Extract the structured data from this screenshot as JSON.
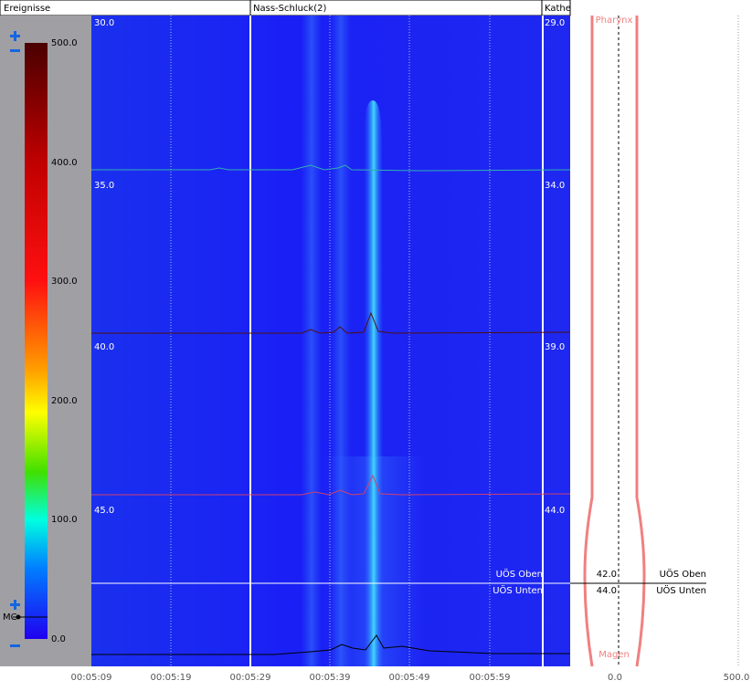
{
  "events": {
    "title": "Ereignisse",
    "items": [
      "Nass-Schluck(2)",
      "Kathe"
    ]
  },
  "colorbar": {
    "ticks": [
      "500.0",
      "400.0",
      "300.0",
      "200.0",
      "100.0",
      "0.0"
    ],
    "marker": "MC"
  },
  "depth_left": [
    "30.0",
    "35.0",
    "40.0",
    "45.0"
  ],
  "depth_right": [
    "29.0",
    "34.0",
    "39.0",
    "44.0"
  ],
  "time_axis": [
    "00:05:09",
    "00:05:19",
    "00:05:29",
    "00:05:39",
    "00:05:49",
    "00:05:59"
  ],
  "profile": {
    "top": "Pharynx",
    "bottom": "Magen",
    "axis": [
      "0.0",
      "500.0"
    ]
  },
  "markers": [
    {
      "label": "UÖS Oben",
      "value": "42.0",
      "right_label": "UÖS Oben"
    },
    {
      "label": "UÖS Unten",
      "value": "44.0",
      "right_label": "UÖS Unten"
    }
  ]
}
